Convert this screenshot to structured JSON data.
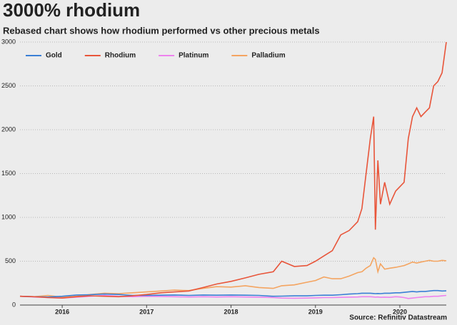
{
  "chart_data": {
    "type": "line",
    "title": "3000% rhodium",
    "subtitle": "Rebased chart shows how rhodium performed vs other precious metals",
    "source": "Source: Refinitiv Datastream",
    "x": [
      2015.5,
      2015.67,
      2015.83,
      2016.0,
      2016.17,
      2016.33,
      2016.5,
      2016.67,
      2016.83,
      2017.0,
      2017.17,
      2017.33,
      2017.5,
      2017.67,
      2017.83,
      2018.0,
      2018.17,
      2018.33,
      2018.5,
      2018.6,
      2018.75,
      2018.9,
      2019.0,
      2019.1,
      2019.2,
      2019.3,
      2019.4,
      2019.5,
      2019.55,
      2019.6,
      2019.65,
      2019.69,
      2019.71,
      2019.74,
      2019.77,
      2019.82,
      2019.88,
      2019.95,
      2020.0,
      2020.05,
      2020.1,
      2020.15,
      2020.2,
      2020.25,
      2020.3,
      2020.35,
      2020.4,
      2020.45,
      2020.5,
      2020.55
    ],
    "series": [
      {
        "name": "Gold",
        "color": "#3a7fd5",
        "values": [
          100,
          95,
          92,
          100,
          115,
          118,
          125,
          120,
          110,
          110,
          112,
          115,
          110,
          115,
          112,
          115,
          112,
          110,
          100,
          102,
          105,
          105,
          110,
          112,
          112,
          118,
          125,
          130,
          135,
          135,
          135,
          132,
          130,
          132,
          130,
          135,
          135,
          140,
          140,
          145,
          150,
          155,
          150,
          155,
          155,
          160,
          165,
          165,
          160,
          162
        ]
      },
      {
        "name": "Rhodium",
        "color": "#e8553a",
        "values": [
          100,
          95,
          85,
          80,
          95,
          105,
          100,
          95,
          105,
          120,
          140,
          150,
          160,
          200,
          240,
          270,
          310,
          350,
          380,
          500,
          440,
          450,
          500,
          560,
          620,
          800,
          850,
          950,
          1100,
          1500,
          1900,
          2150,
          860,
          1650,
          1150,
          1400,
          1150,
          1300,
          1350,
          1400,
          1900,
          2150,
          2250,
          2150,
          2200,
          2250,
          2500,
          2550,
          2650,
          3000
        ]
      },
      {
        "name": "Platinum",
        "color": "#ee82ee",
        "values": [
          100,
          92,
          85,
          80,
          90,
          100,
          110,
          100,
          95,
          100,
          98,
          95,
          92,
          95,
          92,
          95,
          92,
          90,
          85,
          80,
          78,
          80,
          82,
          85,
          85,
          88,
          90,
          92,
          95,
          95,
          95,
          92,
          90,
          92,
          88,
          90,
          88,
          95,
          92,
          85,
          75,
          80,
          85,
          90,
          95,
          95,
          100,
          100,
          105,
          110
        ]
      },
      {
        "name": "Palladium",
        "color": "#f4a460",
        "values": [
          100,
          95,
          110,
          90,
          100,
          120,
          135,
          130,
          140,
          150,
          160,
          170,
          165,
          190,
          210,
          205,
          220,
          200,
          190,
          220,
          230,
          260,
          280,
          320,
          300,
          300,
          330,
          370,
          380,
          420,
          450,
          540,
          520,
          380,
          470,
          410,
          420,
          430,
          440,
          450,
          470,
          490,
          480,
          490,
          500,
          510,
          500,
          500,
          510,
          505
        ]
      }
    ],
    "xlim": [
      2015.5,
      2020.55
    ],
    "xticks": [
      2016,
      2017,
      2018,
      2019,
      2020
    ],
    "ylim": [
      0,
      3000
    ],
    "yticks": [
      0,
      500,
      1000,
      1500,
      2000,
      2500,
      3000
    ],
    "grid": true
  }
}
